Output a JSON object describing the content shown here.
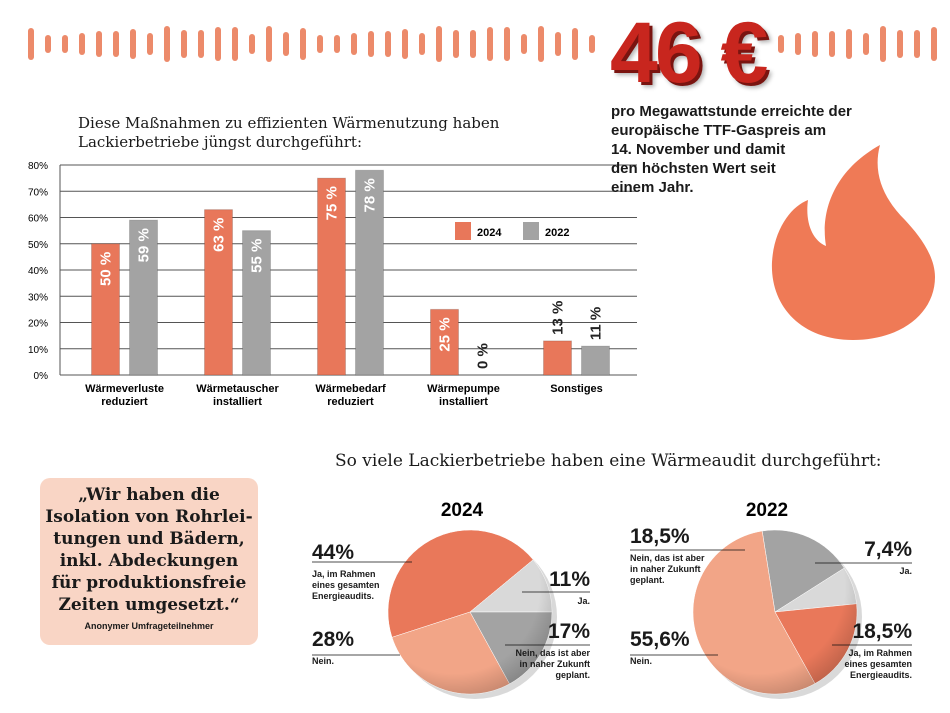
{
  "highlight": {
    "value": "46 €",
    "description": [
      "pro Megawattstunde erreichte der",
      "europäische TTF-Gaspreis am",
      "14. November und damit",
      "den höchsten Wert seit",
      "einem Jahr."
    ]
  },
  "quote": {
    "lines": [
      "„Wir haben die",
      "Isolation von Rohrlei-",
      "tungen und Bädern,",
      "inkl. Abdeckungen",
      "für produktionsfreie",
      "Zeiten umgesetzt.“"
    ],
    "attribution": "Anonymer Umfrageteilnehmer"
  },
  "pie_section_title": "So viele Lackierbetriebe haben eine Wärmeaudit durchgeführt:",
  "chart_data": [
    {
      "type": "bar",
      "title": "Diese Maßnahmen zu effizienten Wärmenutzung haben Lackierbetriebe jüngst durchgeführt:",
      "categories": [
        "Wärmeverluste reduziert",
        "Wärmetauscher installiert",
        "Wärmebedarf reduziert",
        "Wärmepumpe installiert",
        "Sonstiges"
      ],
      "series": [
        {
          "name": "2024",
          "color": "#e8775a",
          "values": [
            50,
            63,
            75,
            25,
            13
          ],
          "value_labels": [
            "50 %",
            "63 %",
            "75 %",
            "25 %",
            "13 %"
          ]
        },
        {
          "name": "2022",
          "color": "#a3a3a3",
          "values": [
            59,
            55,
            78,
            0,
            11
          ],
          "value_labels": [
            "59 %",
            "55 %",
            "78 %",
            "0 %",
            "11 %"
          ]
        }
      ],
      "ylim": [
        0,
        80
      ],
      "yticks": [
        {
          "value": 0,
          "label": "0%"
        },
        {
          "value": 10,
          "label": "10%"
        },
        {
          "value": 20,
          "label": "20%"
        },
        {
          "value": 30,
          "label": "30%"
        },
        {
          "value": 40,
          "label": "40%"
        },
        {
          "value": 50,
          "label": "50%"
        },
        {
          "value": 60,
          "label": "60%"
        },
        {
          "value": 70,
          "label": "70%"
        },
        {
          "value": 80,
          "label": "80%"
        }
      ],
      "grid": true
    },
    {
      "type": "pie",
      "title": "2024",
      "categories": [
        "Ja, im Rahmen eines gesamten Energieaudits.",
        "Ja.",
        "Nein, das ist aber in naher Zukunft geplant.",
        "Nein."
      ],
      "values": [
        44,
        11,
        17,
        28
      ],
      "value_labels": [
        "44%",
        "11%",
        "17%",
        "28%"
      ],
      "colors": [
        "#e9785a",
        "#d9d9d9",
        "#a3a3a3",
        "#f2a587"
      ]
    },
    {
      "type": "pie",
      "title": "2022",
      "categories": [
        "Nein, das ist aber in naher Zukunft geplant.",
        "Ja.",
        "Ja, im Rahmen eines gesamten Energieaudits.",
        "Nein."
      ],
      "values": [
        18.5,
        7.4,
        18.5,
        55.6
      ],
      "value_labels": [
        "18,5%",
        "7,4%",
        "18,5%",
        "55,6%"
      ],
      "colors": [
        "#a3a3a3",
        "#d9d9d9",
        "#e9785a",
        "#f2a587"
      ]
    }
  ]
}
